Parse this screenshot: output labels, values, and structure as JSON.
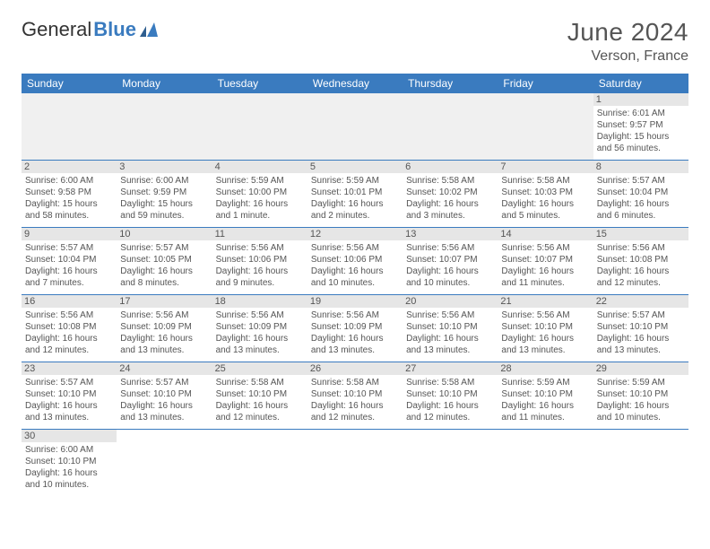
{
  "brand": {
    "part1": "General",
    "part2": "Blue"
  },
  "title": "June 2024",
  "location": "Verson, France",
  "colors": {
    "header_bg": "#3a7bbf",
    "header_text": "#ffffff",
    "daynum_bg": "#e6e6e6",
    "cell_border": "#3a7bbf",
    "text": "#555555",
    "body_bg": "#ffffff"
  },
  "week_header": [
    "Sunday",
    "Monday",
    "Tuesday",
    "Wednesday",
    "Thursday",
    "Friday",
    "Saturday"
  ],
  "weeks": [
    [
      null,
      null,
      null,
      null,
      null,
      null,
      {
        "n": "1",
        "sr": "Sunrise: 6:01 AM",
        "ss": "Sunset: 9:57 PM",
        "d1": "Daylight: 15 hours",
        "d2": "and 56 minutes."
      }
    ],
    [
      {
        "n": "2",
        "sr": "Sunrise: 6:00 AM",
        "ss": "Sunset: 9:58 PM",
        "d1": "Daylight: 15 hours",
        "d2": "and 58 minutes."
      },
      {
        "n": "3",
        "sr": "Sunrise: 6:00 AM",
        "ss": "Sunset: 9:59 PM",
        "d1": "Daylight: 15 hours",
        "d2": "and 59 minutes."
      },
      {
        "n": "4",
        "sr": "Sunrise: 5:59 AM",
        "ss": "Sunset: 10:00 PM",
        "d1": "Daylight: 16 hours",
        "d2": "and 1 minute."
      },
      {
        "n": "5",
        "sr": "Sunrise: 5:59 AM",
        "ss": "Sunset: 10:01 PM",
        "d1": "Daylight: 16 hours",
        "d2": "and 2 minutes."
      },
      {
        "n": "6",
        "sr": "Sunrise: 5:58 AM",
        "ss": "Sunset: 10:02 PM",
        "d1": "Daylight: 16 hours",
        "d2": "and 3 minutes."
      },
      {
        "n": "7",
        "sr": "Sunrise: 5:58 AM",
        "ss": "Sunset: 10:03 PM",
        "d1": "Daylight: 16 hours",
        "d2": "and 5 minutes."
      },
      {
        "n": "8",
        "sr": "Sunrise: 5:57 AM",
        "ss": "Sunset: 10:04 PM",
        "d1": "Daylight: 16 hours",
        "d2": "and 6 minutes."
      }
    ],
    [
      {
        "n": "9",
        "sr": "Sunrise: 5:57 AM",
        "ss": "Sunset: 10:04 PM",
        "d1": "Daylight: 16 hours",
        "d2": "and 7 minutes."
      },
      {
        "n": "10",
        "sr": "Sunrise: 5:57 AM",
        "ss": "Sunset: 10:05 PM",
        "d1": "Daylight: 16 hours",
        "d2": "and 8 minutes."
      },
      {
        "n": "11",
        "sr": "Sunrise: 5:56 AM",
        "ss": "Sunset: 10:06 PM",
        "d1": "Daylight: 16 hours",
        "d2": "and 9 minutes."
      },
      {
        "n": "12",
        "sr": "Sunrise: 5:56 AM",
        "ss": "Sunset: 10:06 PM",
        "d1": "Daylight: 16 hours",
        "d2": "and 10 minutes."
      },
      {
        "n": "13",
        "sr": "Sunrise: 5:56 AM",
        "ss": "Sunset: 10:07 PM",
        "d1": "Daylight: 16 hours",
        "d2": "and 10 minutes."
      },
      {
        "n": "14",
        "sr": "Sunrise: 5:56 AM",
        "ss": "Sunset: 10:07 PM",
        "d1": "Daylight: 16 hours",
        "d2": "and 11 minutes."
      },
      {
        "n": "15",
        "sr": "Sunrise: 5:56 AM",
        "ss": "Sunset: 10:08 PM",
        "d1": "Daylight: 16 hours",
        "d2": "and 12 minutes."
      }
    ],
    [
      {
        "n": "16",
        "sr": "Sunrise: 5:56 AM",
        "ss": "Sunset: 10:08 PM",
        "d1": "Daylight: 16 hours",
        "d2": "and 12 minutes."
      },
      {
        "n": "17",
        "sr": "Sunrise: 5:56 AM",
        "ss": "Sunset: 10:09 PM",
        "d1": "Daylight: 16 hours",
        "d2": "and 13 minutes."
      },
      {
        "n": "18",
        "sr": "Sunrise: 5:56 AM",
        "ss": "Sunset: 10:09 PM",
        "d1": "Daylight: 16 hours",
        "d2": "and 13 minutes."
      },
      {
        "n": "19",
        "sr": "Sunrise: 5:56 AM",
        "ss": "Sunset: 10:09 PM",
        "d1": "Daylight: 16 hours",
        "d2": "and 13 minutes."
      },
      {
        "n": "20",
        "sr": "Sunrise: 5:56 AM",
        "ss": "Sunset: 10:10 PM",
        "d1": "Daylight: 16 hours",
        "d2": "and 13 minutes."
      },
      {
        "n": "21",
        "sr": "Sunrise: 5:56 AM",
        "ss": "Sunset: 10:10 PM",
        "d1": "Daylight: 16 hours",
        "d2": "and 13 minutes."
      },
      {
        "n": "22",
        "sr": "Sunrise: 5:57 AM",
        "ss": "Sunset: 10:10 PM",
        "d1": "Daylight: 16 hours",
        "d2": "and 13 minutes."
      }
    ],
    [
      {
        "n": "23",
        "sr": "Sunrise: 5:57 AM",
        "ss": "Sunset: 10:10 PM",
        "d1": "Daylight: 16 hours",
        "d2": "and 13 minutes."
      },
      {
        "n": "24",
        "sr": "Sunrise: 5:57 AM",
        "ss": "Sunset: 10:10 PM",
        "d1": "Daylight: 16 hours",
        "d2": "and 13 minutes."
      },
      {
        "n": "25",
        "sr": "Sunrise: 5:58 AM",
        "ss": "Sunset: 10:10 PM",
        "d1": "Daylight: 16 hours",
        "d2": "and 12 minutes."
      },
      {
        "n": "26",
        "sr": "Sunrise: 5:58 AM",
        "ss": "Sunset: 10:10 PM",
        "d1": "Daylight: 16 hours",
        "d2": "and 12 minutes."
      },
      {
        "n": "27",
        "sr": "Sunrise: 5:58 AM",
        "ss": "Sunset: 10:10 PM",
        "d1": "Daylight: 16 hours",
        "d2": "and 12 minutes."
      },
      {
        "n": "28",
        "sr": "Sunrise: 5:59 AM",
        "ss": "Sunset: 10:10 PM",
        "d1": "Daylight: 16 hours",
        "d2": "and 11 minutes."
      },
      {
        "n": "29",
        "sr": "Sunrise: 5:59 AM",
        "ss": "Sunset: 10:10 PM",
        "d1": "Daylight: 16 hours",
        "d2": "and 10 minutes."
      }
    ],
    [
      {
        "n": "30",
        "sr": "Sunrise: 6:00 AM",
        "ss": "Sunset: 10:10 PM",
        "d1": "Daylight: 16 hours",
        "d2": "and 10 minutes."
      },
      null,
      null,
      null,
      null,
      null,
      null
    ]
  ]
}
